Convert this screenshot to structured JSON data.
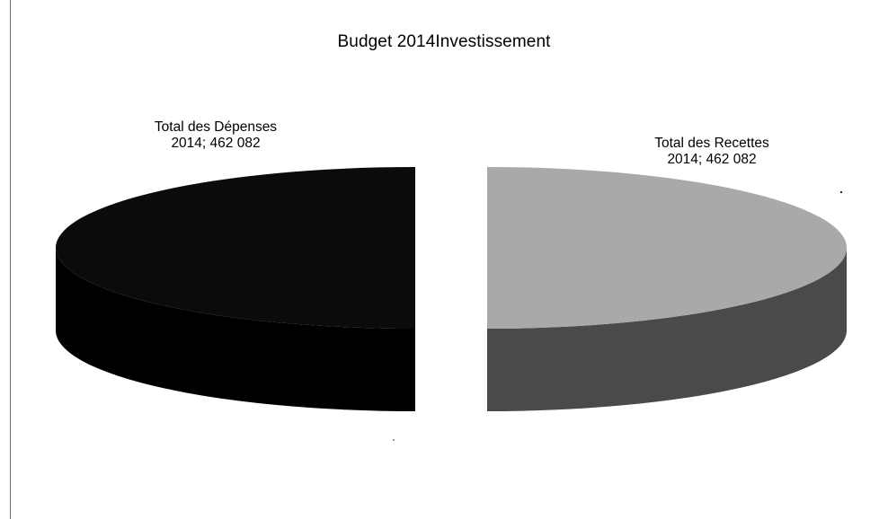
{
  "chart_data": {
    "type": "pie",
    "title": "Budget 2014Investissement",
    "slices": [
      {
        "label_line1": "Total des Dépenses",
        "label_line2": "2014; 462 082",
        "category": "Total des Dépenses 2014",
        "value": 462082,
        "color": "#0b0b0b",
        "side_color": "#000000"
      },
      {
        "label_line1": "Total des Recettes",
        "label_line2": "2014; 462 082",
        "category": "Total des Recettes 2014",
        "value": 462082,
        "color": "#a9a9a9",
        "side_color": "#4a4a4a"
      }
    ],
    "legend": "none",
    "style": "3d-exploded"
  }
}
